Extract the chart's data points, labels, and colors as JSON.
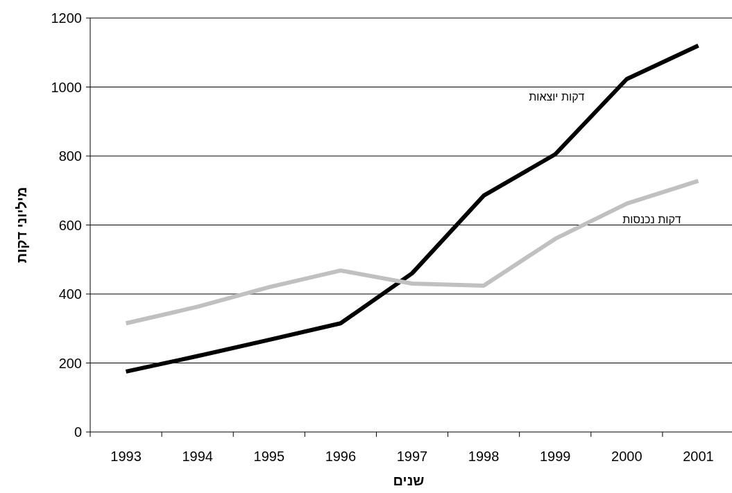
{
  "chart_data": {
    "type": "line",
    "xlabel": "שנים",
    "ylabel": "מיליוני דקות",
    "categories": [
      "1993",
      "1994",
      "1995",
      "1996",
      "1997",
      "1998",
      "1999",
      "2000",
      "2001"
    ],
    "series": [
      {
        "name": "דקות יוצאות",
        "color": "#000000",
        "values": [
          175,
          220,
          267,
          315,
          460,
          685,
          805,
          1023,
          1120
        ]
      },
      {
        "name": "דקות נכנסות",
        "color": "#c0c0c0",
        "values": [
          315,
          363,
          420,
          468,
          430,
          424,
          560,
          662,
          728
        ]
      }
    ],
    "ylim": [
      0,
      1200
    ],
    "yticks": [
      0,
      200,
      400,
      600,
      800,
      1000,
      1200
    ],
    "grid": "y",
    "marker": "none",
    "line_style": "solid"
  }
}
